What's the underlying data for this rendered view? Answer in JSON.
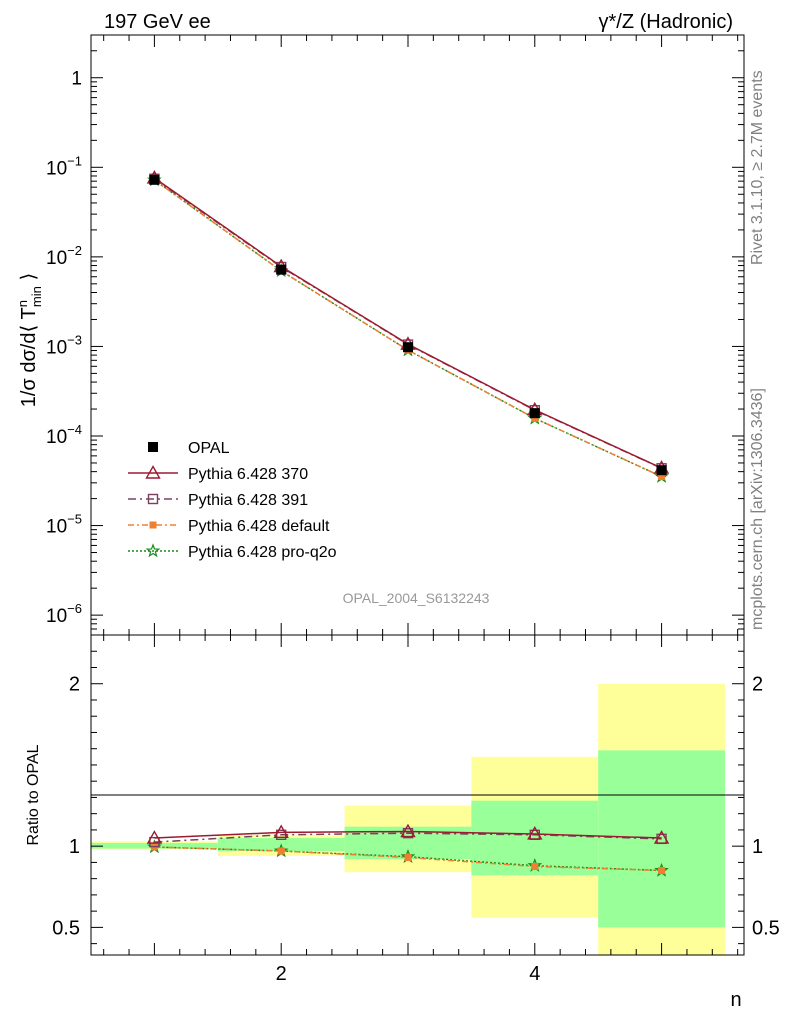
{
  "header": {
    "left_label": "197 GeV ee",
    "right_label": "γ*/Z (Hadronic)"
  },
  "side_labels": {
    "rivet": "Rivet 3.1.10, ≥ 2.7M events",
    "mcplots": "mcplots.cern.ch [arXiv:1306.3436]"
  },
  "analysis_id": "OPAL_2004_S6132243",
  "colors": {
    "opal": "#000000",
    "p370": "#9b1b30",
    "p391": "#7a4060",
    "pdefault": "#f08030",
    "pq2o": "#1a8a1a",
    "band_outer": "#ffff99",
    "band_inner": "#99ff99"
  },
  "chart_data": [
    {
      "type": "line",
      "panel": "main",
      "ylabel": "1/σ dσ/d⟨ T^n_min ⟩",
      "yscale": "log",
      "ylim": [
        6e-07,
        3.0
      ],
      "xlim": [
        0.5,
        5.65
      ],
      "yticks": [
        {
          "value": 1,
          "base": "1",
          "exp": ""
        },
        {
          "value": 0.1,
          "base": "10",
          "exp": "−1"
        },
        {
          "value": 0.01,
          "base": "10",
          "exp": "−2"
        },
        {
          "value": 0.001,
          "base": "10",
          "exp": "−3"
        },
        {
          "value": 0.0001,
          "base": "10",
          "exp": "−4"
        },
        {
          "value": 1e-05,
          "base": "10",
          "exp": "−5"
        },
        {
          "value": 1e-06,
          "base": "10",
          "exp": "−6"
        }
      ],
      "legend_position": "lower-left",
      "series": [
        {
          "key": "opal",
          "name": "OPAL",
          "style": "data",
          "x": [
            1,
            2,
            3,
            4,
            5
          ],
          "y": [
            0.0725,
            0.0072,
            0.00098,
            0.00018,
            4.15e-05
          ]
        },
        {
          "key": "p370",
          "name": "Pythia 6.428 370",
          "style": "triangle",
          "x": [
            1,
            2,
            3,
            4,
            5
          ],
          "y": [
            0.076,
            0.0078,
            0.00106,
            0.000196,
            4.38e-05
          ]
        },
        {
          "key": "p391",
          "name": "Pythia 6.428 391",
          "style": "square",
          "x": [
            1,
            2,
            3,
            4,
            5
          ],
          "y": [
            0.0745,
            0.0077,
            0.00105,
            0.000194,
            4.36e-05
          ]
        },
        {
          "key": "pdefault",
          "name": "Pythia 6.428 default",
          "style": "filled-square",
          "x": [
            1,
            2,
            3,
            4,
            5
          ],
          "y": [
            0.0721,
            0.00698,
            0.00091,
            0.0001575,
            3.52e-05
          ]
        },
        {
          "key": "pq2o",
          "name": "Pythia 6.428 pro-q2o",
          "style": "star",
          "x": [
            1,
            2,
            3,
            4,
            5
          ],
          "y": [
            0.0721,
            0.00698,
            0.00091,
            0.0001575,
            3.52e-05
          ]
        }
      ]
    },
    {
      "type": "line",
      "panel": "ratio",
      "ylabel": "Ratio to OPAL",
      "xlabel": "n",
      "ylim": [
        0.33,
        2.3
      ],
      "xlim": [
        0.5,
        5.65
      ],
      "yticks": [
        {
          "value": 0.5,
          "label": "0.5"
        },
        {
          "value": 1,
          "label": "1"
        },
        {
          "value": 2,
          "label": "2"
        }
      ],
      "xticks": [
        {
          "value": 2,
          "label": "2"
        },
        {
          "value": 4,
          "label": "4"
        }
      ],
      "bands": [
        {
          "x0": 0.5,
          "x1": 1.5,
          "outer": [
            0.98,
            1.03
          ],
          "inner": [
            0.985,
            1.02
          ]
        },
        {
          "x0": 1.5,
          "x1": 2.5,
          "outer": [
            0.94,
            1.07
          ],
          "inner": [
            0.97,
            1.05
          ]
        },
        {
          "x0": 2.5,
          "x1": 3.5,
          "outer": [
            0.84,
            1.25
          ],
          "inner": [
            0.92,
            1.12
          ]
        },
        {
          "x0": 3.5,
          "x1": 4.5,
          "outer": [
            0.56,
            1.55
          ],
          "inner": [
            0.82,
            1.28
          ]
        },
        {
          "x0": 4.5,
          "x1": 5.5,
          "outer": [
            0.33,
            2.0
          ],
          "inner": [
            0.5,
            1.59
          ]
        }
      ],
      "series": [
        {
          "key": "p370",
          "x": [
            1,
            2,
            3,
            4,
            5
          ],
          "y": [
            1.05,
            1.085,
            1.09,
            1.075,
            1.05
          ]
        },
        {
          "key": "p391",
          "x": [
            1,
            2,
            3,
            4,
            5
          ],
          "y": [
            1.025,
            1.07,
            1.08,
            1.07,
            1.045
          ]
        },
        {
          "key": "pdefault",
          "x": [
            1,
            2,
            3,
            4,
            5
          ],
          "y": [
            0.995,
            0.97,
            0.93,
            0.875,
            0.85
          ]
        },
        {
          "key": "pq2o",
          "x": [
            1,
            2,
            3,
            4,
            5
          ],
          "y": [
            0.995,
            0.97,
            0.935,
            0.88,
            0.85
          ]
        }
      ]
    }
  ]
}
